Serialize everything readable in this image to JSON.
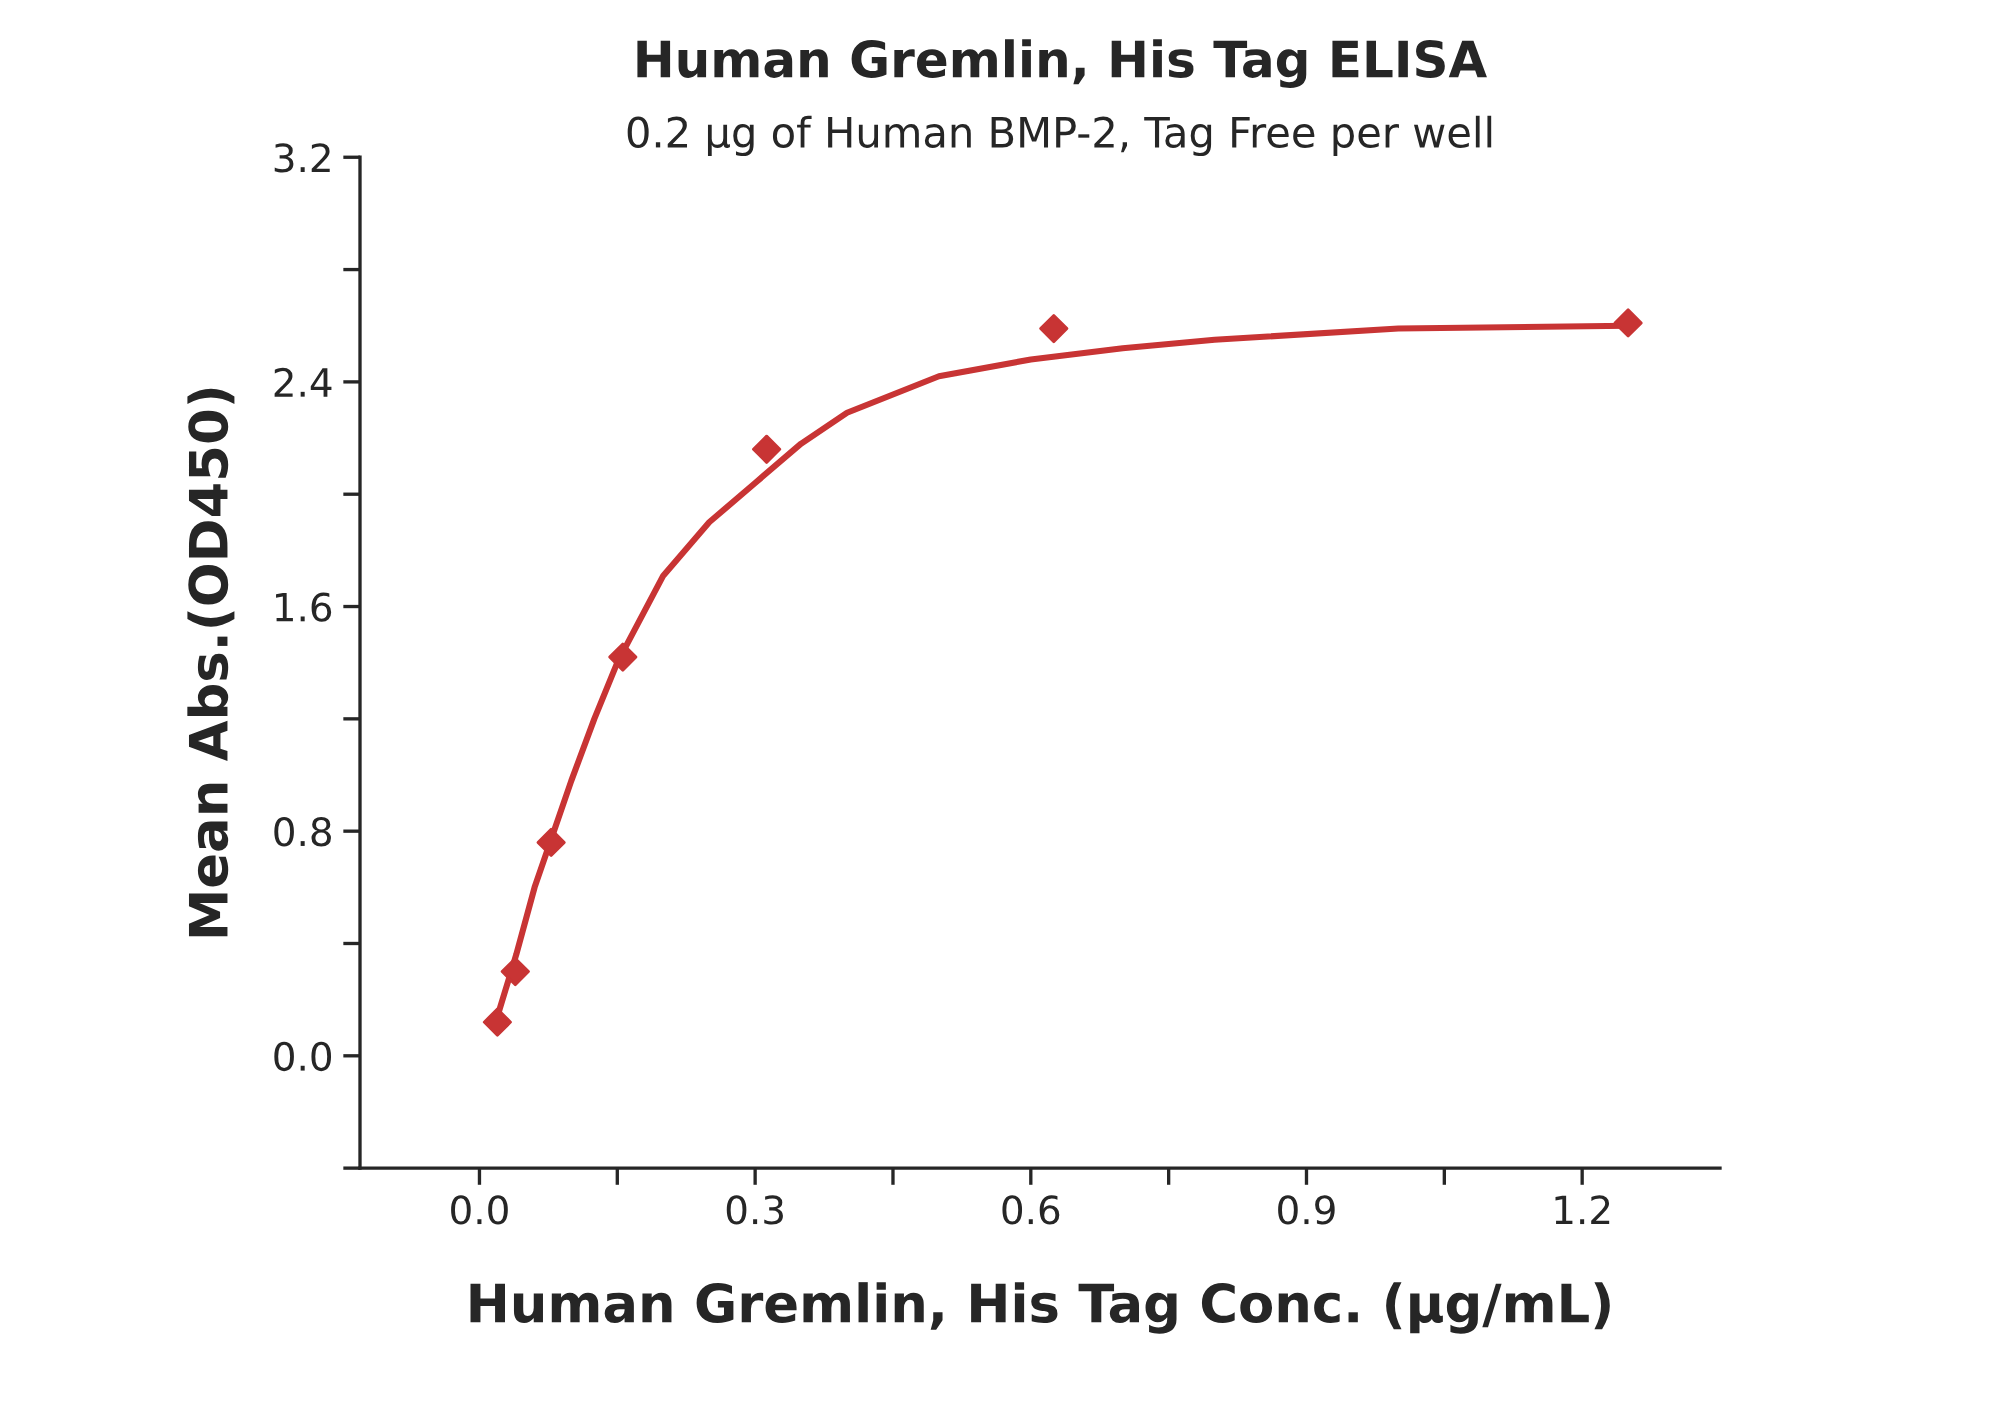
{
  "chart_data": {
    "type": "scatter",
    "title": "Human Gremlin, His Tag ELISA",
    "subtitle": "0.2 µg of Human BMP-2, Tag Free per well",
    "xlabel": "Human Gremlin, His Tag Conc. (µg/mL)",
    "ylabel": "Mean Abs.(OD450)",
    "series": [
      {
        "color": "#c83434",
        "marker": "diamond",
        "x": [
          0.0195,
          0.039,
          0.078,
          0.156,
          0.3125,
          0.625,
          1.25
        ],
        "values": [
          0.12,
          0.3,
          0.76,
          1.42,
          2.16,
          2.59,
          2.61
        ]
      },
      {
        "type": "line",
        "color": "#c83434",
        "marker": "none",
        "line_style": "solid",
        "x": [
          0.0195,
          0.04,
          0.06,
          0.08,
          0.1,
          0.125,
          0.15,
          0.2,
          0.25,
          0.3,
          0.35,
          0.4,
          0.5,
          0.6,
          0.7,
          0.8,
          1.0,
          1.25
        ],
        "values": [
          0.14,
          0.36,
          0.6,
          0.79,
          0.98,
          1.2,
          1.4,
          1.71,
          1.9,
          2.04,
          2.18,
          2.29,
          2.42,
          2.48,
          2.52,
          2.55,
          2.59,
          2.6
        ]
      }
    ],
    "xlim": [
      -0.13,
      1.35
    ],
    "ylim": [
      -0.4,
      3.2
    ],
    "xticks": [
      {
        "value": 0.0,
        "label": "0.0"
      },
      {
        "value": 0.15,
        "label": null
      },
      {
        "value": 0.3,
        "label": "0.3"
      },
      {
        "value": 0.45,
        "label": null
      },
      {
        "value": 0.6,
        "label": "0.6"
      },
      {
        "value": 0.75,
        "label": null
      },
      {
        "value": 0.9,
        "label": "0.9"
      },
      {
        "value": 1.05,
        "label": null
      },
      {
        "value": 1.2,
        "label": "1.2"
      }
    ],
    "yticks": [
      {
        "value": -0.4,
        "label": null
      },
      {
        "value": 0.0,
        "label": "0.0"
      },
      {
        "value": 0.4,
        "label": null
      },
      {
        "value": 0.8,
        "label": "0.8"
      },
      {
        "value": 1.2,
        "label": null
      },
      {
        "value": 1.6,
        "label": "1.6"
      },
      {
        "value": 2.0,
        "label": null
      },
      {
        "value": 2.4,
        "label": "2.4"
      },
      {
        "value": 2.8,
        "label": null
      },
      {
        "value": 3.2,
        "label": "3.2"
      }
    ],
    "grid": false,
    "legend": false
  }
}
